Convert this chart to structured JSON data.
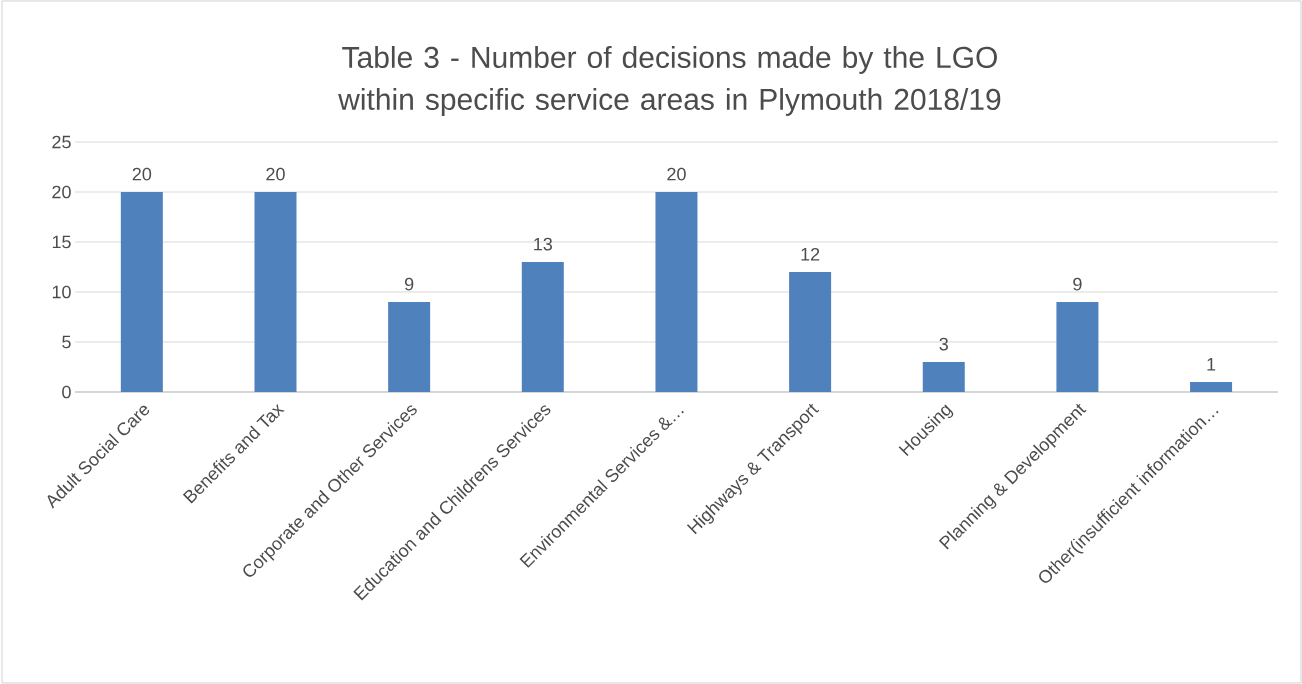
{
  "chart_data": {
    "type": "bar",
    "title": "Table 3 - Number of decisions made by the LGO within specific service areas in Plymouth 2018/19",
    "categories": [
      "Adult Social Care",
      "Benefits and Tax",
      "Corporate and Other Services",
      "Education and Childrens Services",
      "Environmental Services &…",
      "Highways & Transport",
      "Housing",
      "Planning & Development",
      "Other(insufficient information…"
    ],
    "values": [
      20,
      20,
      9,
      13,
      20,
      12,
      3,
      9,
      1
    ],
    "color": "#4f81bd",
    "ylim": [
      0,
      25
    ],
    "yticks": [
      0,
      5,
      10,
      15,
      20,
      25
    ],
    "grid": "y",
    "data_labels": true
  }
}
